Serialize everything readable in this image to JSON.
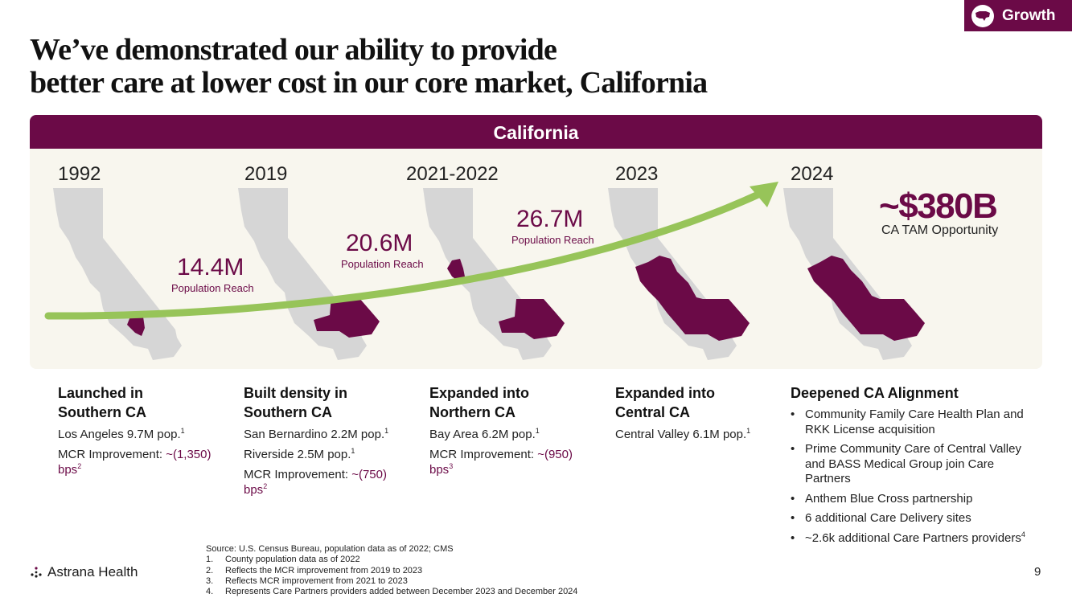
{
  "badge": {
    "label": "Growth",
    "icon": "us-map-icon"
  },
  "title": {
    "line1": "We’ve demonstrated our ability to provide",
    "line2": "better care at lower cost in our core market, California"
  },
  "panel": {
    "header": "California",
    "years": [
      "1992",
      "2019",
      "2021-2022",
      "2023",
      "2024"
    ],
    "stats": [
      {
        "value": "14.4M",
        "caption": "Population Reach"
      },
      {
        "value": "20.6M",
        "caption": "Population Reach"
      },
      {
        "value": "26.7M",
        "caption": "Population Reach"
      }
    ],
    "tam": {
      "value": "~$380B",
      "caption": "CA TAM Opportunity"
    }
  },
  "columns": [
    {
      "heading_line1": "Launched in",
      "heading_line2": "Southern CA",
      "pop1": "Los Angeles 9.7M pop.",
      "pop1_sup": "1",
      "mcr_label": "MCR Improvement: ",
      "mcr_value": "~(1,350)",
      "mcr_unit": "bps",
      "mcr_sup": "2"
    },
    {
      "heading_line1": "Built density in",
      "heading_line2": "Southern CA",
      "pop1": "San Bernardino 2.2M pop.",
      "pop1_sup": "1",
      "pop2": "Riverside 2.5M pop.",
      "pop2_sup": "1",
      "mcr_label": "MCR Improvement: ",
      "mcr_value": "~(750)",
      "mcr_unit": "bps",
      "mcr_sup": "2"
    },
    {
      "heading_line1": "Expanded into",
      "heading_line2": "Northern CA",
      "pop1": "Bay Area 6.2M pop.",
      "pop1_sup": "1",
      "mcr_label": "MCR Improvement: ",
      "mcr_value": "~(950)",
      "mcr_unit": "bps",
      "mcr_sup": "3"
    },
    {
      "heading_line1": "Expanded into",
      "heading_line2": "Central CA",
      "pop1": "Central Valley 6.1M pop.",
      "pop1_sup": "1"
    },
    {
      "heading": "Deepened CA Alignment",
      "bullets": [
        "Community Family Care Health Plan and RKK License acquisition",
        "Prime Community Care of Central Valley and BASS Medical Group join Care Partners",
        "Anthem Blue Cross partnership",
        "6 additional Care Delivery sites",
        "~2.6k additional Care Partners providers"
      ],
      "last_bullet_sup": "4"
    }
  ],
  "source": {
    "line": "Source: U.S. Census Bureau, population data as of 2022; CMS",
    "footnotes": [
      {
        "num": "1.",
        "text": "County population data as of 2022"
      },
      {
        "num": "2.",
        "text": "Reflects the MCR improvement from 2019 to 2023"
      },
      {
        "num": "3.",
        "text": "Reflects MCR improvement from 2021 to 2023"
      },
      {
        "num": "4.",
        "text": "Represents Care Partners providers added between December 2023 and December 2024"
      }
    ]
  },
  "footer": {
    "logo": "Astrana Health",
    "page": "9"
  },
  "colors": {
    "brand": "#6b0a47",
    "arrow": "#97c459",
    "map_gray": "#d6d6d6",
    "panel_bg": "#f8f6ee"
  }
}
